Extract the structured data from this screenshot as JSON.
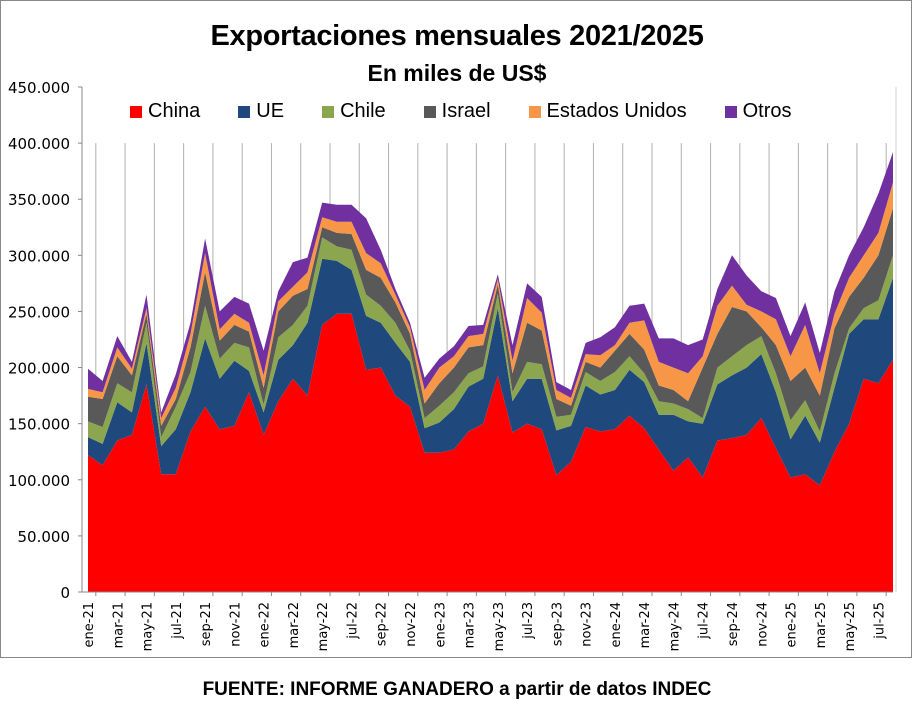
{
  "chart_data": {
    "type": "area",
    "stacked": true,
    "title": "Exportaciones mensuales 2021/2025",
    "subtitle": "En miles de US$",
    "xlabel": "",
    "ylabel": "",
    "ylim": [
      0,
      450000
    ],
    "yticks": [
      0,
      50000,
      100000,
      150000,
      200000,
      250000,
      300000,
      350000,
      400000,
      450000
    ],
    "ytick_labels": [
      "0",
      "50.000",
      "100.000",
      "150.000",
      "200.000",
      "250.000",
      "300.000",
      "350.000",
      "400.000",
      "450.000"
    ],
    "grid": "vertical",
    "legend_position": "top",
    "x": [
      "ene-21",
      "feb-21",
      "mar-21",
      "abr-21",
      "may-21",
      "jun-21",
      "jul-21",
      "ago-21",
      "sep-21",
      "oct-21",
      "nov-21",
      "dic-21",
      "ene-22",
      "feb-22",
      "mar-22",
      "abr-22",
      "may-22",
      "jun-22",
      "jul-22",
      "ago-22",
      "sep-22",
      "oct-22",
      "nov-22",
      "dic-22",
      "ene-23",
      "feb-23",
      "mar-23",
      "abr-23",
      "may-23",
      "jun-23",
      "jul-23",
      "ago-23",
      "sep-23",
      "oct-23",
      "nov-23",
      "dic-23",
      "ene-24",
      "feb-24",
      "mar-24",
      "abr-24",
      "may-24",
      "jun-24",
      "jul-24",
      "ago-24",
      "sep-24",
      "oct-24",
      "nov-24",
      "dic-24",
      "ene-25",
      "feb-25",
      "mar-25",
      "abr-25",
      "may-25",
      "jun-25",
      "jul-25",
      "ago-25"
    ],
    "x_tick_labels": [
      "ene-21",
      "mar-21",
      "may-21",
      "jul-21",
      "sep-21",
      "nov-21",
      "ene-22",
      "mar-22",
      "may-22",
      "jul-22",
      "sep-22",
      "nov-22",
      "ene-23",
      "mar-23",
      "may-23",
      "jul-23",
      "sep-23",
      "nov-23",
      "ene-24",
      "mar-24",
      "may-24",
      "jul-24",
      "sep-24",
      "nov-24",
      "ene-25",
      "mar-25",
      "may-25",
      "jul-25"
    ],
    "series": [
      {
        "name": "China",
        "color": "#FF0000",
        "values": [
          122000,
          113000,
          135000,
          140000,
          185000,
          105000,
          105000,
          143000,
          165000,
          145000,
          148000,
          178000,
          140000,
          170000,
          190000,
          175000,
          238000,
          248000,
          248000,
          198000,
          200000,
          175000,
          165000,
          124000,
          124000,
          127000,
          143000,
          150000,
          193000,
          142000,
          150000,
          145000,
          104000,
          116000,
          147000,
          143000,
          145000,
          157000,
          146000,
          127000,
          108000,
          120000,
          102000,
          135000,
          137000,
          140000,
          155000,
          128000,
          102000,
          105000,
          95000,
          125000,
          150000,
          190000,
          186000,
          207000
        ]
      },
      {
        "name": "UE",
        "color": "#1F497D",
        "values": [
          16000,
          19000,
          34000,
          20000,
          37000,
          25000,
          40000,
          35000,
          61000,
          45000,
          58000,
          19000,
          20000,
          37000,
          30000,
          65000,
          59000,
          47000,
          39000,
          48000,
          40000,
          47000,
          40000,
          22000,
          27000,
          36000,
          40000,
          40000,
          60000,
          28000,
          40000,
          45000,
          40000,
          32000,
          37000,
          33000,
          35000,
          41000,
          41000,
          31000,
          50000,
          32000,
          48000,
          50000,
          56000,
          60000,
          57000,
          50000,
          34000,
          52000,
          38000,
          57000,
          80000,
          53000,
          57000,
          73000
        ]
      },
      {
        "name": "Chile",
        "color": "#8BA64E",
        "values": [
          14000,
          15000,
          17000,
          18000,
          18000,
          8000,
          20000,
          18000,
          29000,
          18000,
          16000,
          21000,
          7000,
          20000,
          18000,
          15000,
          19000,
          13000,
          18000,
          19000,
          15000,
          18000,
          10000,
          9000,
          15000,
          15000,
          12000,
          11000,
          13000,
          8000,
          15000,
          13000,
          12000,
          10000,
          12000,
          12000,
          16000,
          12000,
          8000,
          12000,
          10000,
          11000,
          5000,
          15000,
          17000,
          20000,
          16000,
          17000,
          17000,
          14000,
          10000,
          13000,
          5000,
          10000,
          17000,
          20000
        ]
      },
      {
        "name": "Israel",
        "color": "#595959",
        "values": [
          22000,
          25000,
          24000,
          15000,
          8000,
          10000,
          7000,
          22000,
          30000,
          16000,
          16000,
          14000,
          15000,
          23000,
          26000,
          15000,
          9000,
          12000,
          14000,
          22000,
          25000,
          18000,
          15000,
          13000,
          20000,
          22000,
          23000,
          19000,
          8000,
          17000,
          35000,
          30000,
          16000,
          8000,
          9000,
          12000,
          19000,
          20000,
          21000,
          14000,
          12000,
          7000,
          45000,
          30000,
          44000,
          30000,
          8000,
          25000,
          35000,
          29000,
          32000,
          40000,
          28000,
          27000,
          40000,
          42000
        ]
      },
      {
        "name": "Estados Unidos",
        "color": "#F79646",
        "values": [
          7000,
          6000,
          8000,
          6000,
          5000,
          7000,
          10000,
          12000,
          17000,
          10000,
          10000,
          8000,
          11000,
          9000,
          8000,
          15000,
          9000,
          10000,
          11000,
          15000,
          13000,
          7000,
          6000,
          12000,
          14000,
          10000,
          10000,
          10000,
          5000,
          11000,
          22000,
          16000,
          8000,
          7000,
          7000,
          11000,
          5000,
          10000,
          26000,
          21000,
          20000,
          25000,
          10000,
          25000,
          19000,
          6000,
          14000,
          23000,
          22000,
          38000,
          20000,
          13000,
          17000,
          20000,
          20000,
          23000
        ]
      },
      {
        "name": "Otros",
        "color": "#7030A0",
        "values": [
          18000,
          10000,
          10000,
          6000,
          12000,
          5000,
          12000,
          10000,
          13000,
          16000,
          15000,
          17000,
          22000,
          9000,
          22000,
          13000,
          13000,
          15000,
          15000,
          31000,
          12000,
          5000,
          4000,
          11000,
          8000,
          9000,
          9000,
          8000,
          4000,
          14000,
          13000,
          14000,
          7000,
          7000,
          10000,
          16000,
          16000,
          15000,
          15000,
          21000,
          26000,
          25000,
          15000,
          15000,
          27000,
          26000,
          18000,
          19000,
          18000,
          20000,
          18000,
          20000,
          20000,
          25000,
          35000,
          27000
        ]
      }
    ]
  },
  "footer": {
    "source": "FUENTE: INFORME GANADERO a partir de datos INDEC"
  }
}
